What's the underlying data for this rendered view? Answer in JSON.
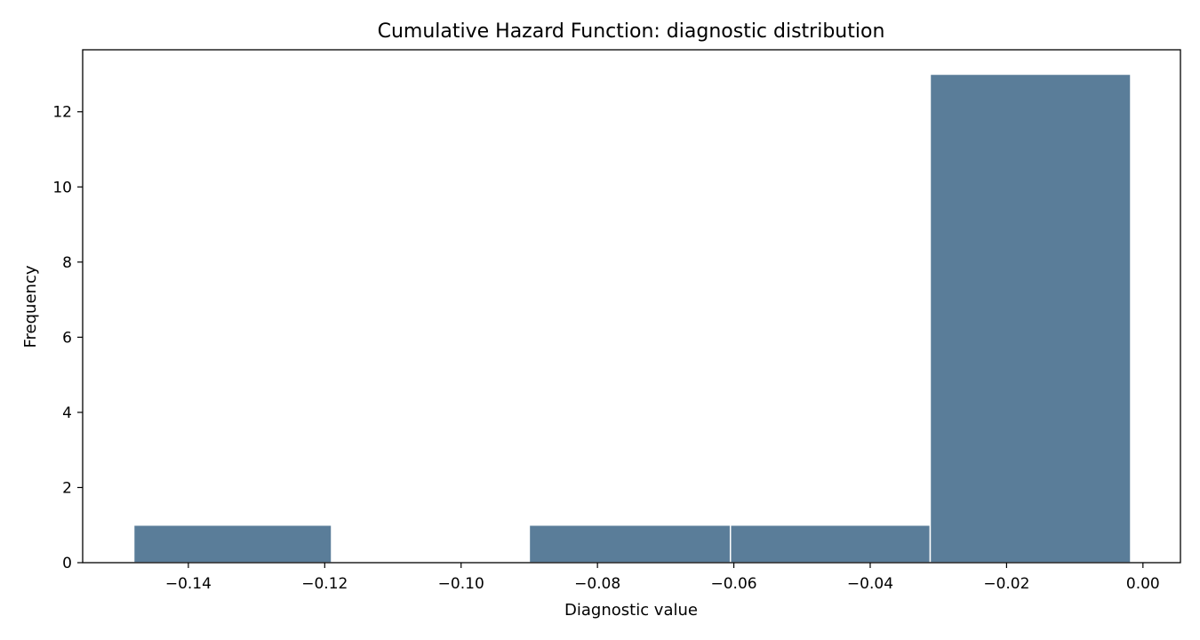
{
  "chart_data": {
    "type": "bar",
    "title": "Cumulative Hazard Function: diagnostic distribution",
    "xlabel": "Diagnostic value",
    "ylabel": "Frequency",
    "xlim": [
      -0.1555,
      0.0055
    ],
    "ylim": [
      0,
      13.65
    ],
    "bar_color": "#5a7d99",
    "edge_color": "#ffffff",
    "grid": false,
    "legend": "none",
    "bins": [
      {
        "start": -0.148,
        "end": -0.119,
        "count": 1
      },
      {
        "start": -0.119,
        "end": -0.09,
        "count": 0
      },
      {
        "start": -0.09,
        "end": -0.0605,
        "count": 1
      },
      {
        "start": -0.0605,
        "end": -0.0312,
        "count": 1
      },
      {
        "start": -0.0312,
        "end": -0.0018,
        "count": 13
      }
    ],
    "x_ticks": [
      {
        "value": -0.14,
        "label": "−0.14"
      },
      {
        "value": -0.12,
        "label": "−0.12"
      },
      {
        "value": -0.1,
        "label": "−0.10"
      },
      {
        "value": -0.08,
        "label": "−0.08"
      },
      {
        "value": -0.06,
        "label": "−0.06"
      },
      {
        "value": -0.04,
        "label": "−0.04"
      },
      {
        "value": -0.02,
        "label": "−0.02"
      },
      {
        "value": 0.0,
        "label": "0.00"
      }
    ],
    "y_ticks": [
      {
        "value": 0,
        "label": "0"
      },
      {
        "value": 2,
        "label": "2"
      },
      {
        "value": 4,
        "label": "4"
      },
      {
        "value": 6,
        "label": "6"
      },
      {
        "value": 8,
        "label": "8"
      },
      {
        "value": 10,
        "label": "10"
      },
      {
        "value": 12,
        "label": "12"
      }
    ]
  }
}
